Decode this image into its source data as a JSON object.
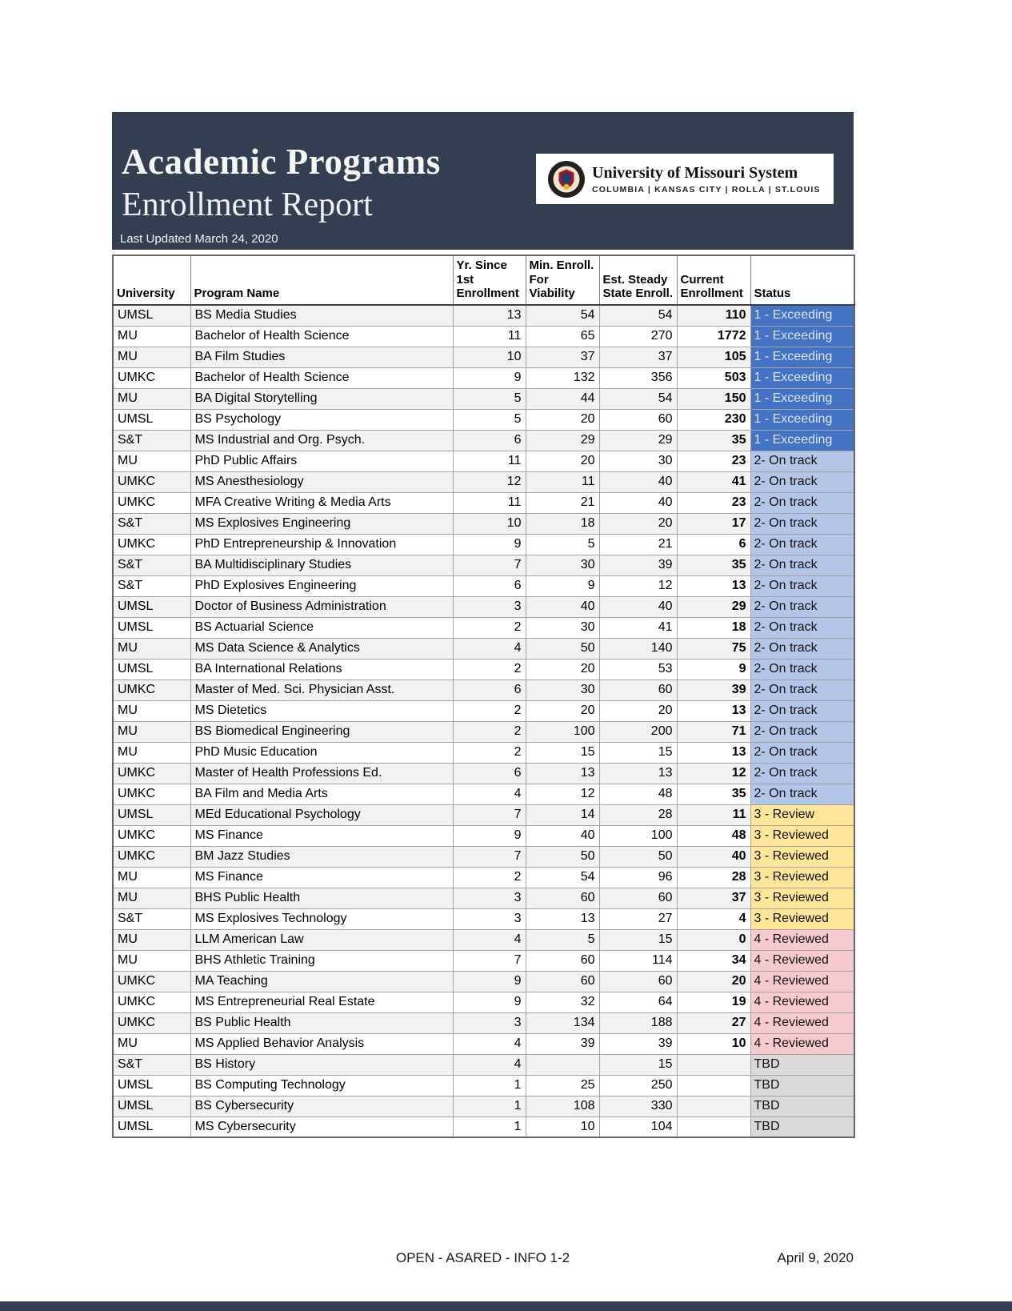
{
  "banner": {
    "title_line1": "Academic Programs",
    "title_line2": "Enrollment Report",
    "last_updated": "Last Updated March 24, 2020",
    "logo": {
      "org_name": "University of Missouri System",
      "campuses": "COLUMBIA | KANSAS CITY | ROLLA | ST.LOUIS",
      "seal_icon": "university-seal-icon"
    },
    "bg_color": "#333f50"
  },
  "table": {
    "headers": [
      {
        "lines": [
          "University"
        ]
      },
      {
        "lines": [
          "Program Name"
        ]
      },
      {
        "lines": [
          "Yr. Since 1st",
          "Enrollment"
        ]
      },
      {
        "lines": [
          "Min. Enroll.",
          "For Viability"
        ]
      },
      {
        "lines": [
          "Est. Steady",
          "State Enroll."
        ]
      },
      {
        "lines": [
          "Current",
          "Enrollment"
        ]
      },
      {
        "lines": [
          "Status"
        ]
      }
    ],
    "rows": [
      {
        "university": "UMSL",
        "program": "BS Media Studies",
        "years": "13",
        "min_enroll": "54",
        "steady_state": "54",
        "current": "110",
        "status": "1 - Exceeding"
      },
      {
        "university": "MU",
        "program": "Bachelor of Health Science",
        "years": "11",
        "min_enroll": "65",
        "steady_state": "270",
        "current": "1772",
        "status": "1 - Exceeding"
      },
      {
        "university": "MU",
        "program": "BA Film Studies",
        "years": "10",
        "min_enroll": "37",
        "steady_state": "37",
        "current": "105",
        "status": "1 - Exceeding"
      },
      {
        "university": "UMKC",
        "program": "Bachelor of Health Science",
        "years": "9",
        "min_enroll": "132",
        "steady_state": "356",
        "current": "503",
        "status": "1 - Exceeding"
      },
      {
        "university": "MU",
        "program": "BA Digital Storytelling",
        "years": "5",
        "min_enroll": "44",
        "steady_state": "54",
        "current": "150",
        "status": "1 - Exceeding"
      },
      {
        "university": "UMSL",
        "program": "BS Psychology",
        "years": "5",
        "min_enroll": "20",
        "steady_state": "60",
        "current": "230",
        "status": "1 - Exceeding"
      },
      {
        "university": "S&T",
        "program": "MS Industrial and Org. Psych.",
        "years": "6",
        "min_enroll": "29",
        "steady_state": "29",
        "current": "35",
        "status": "1 - Exceeding"
      },
      {
        "university": "MU",
        "program": "PhD Public Affairs",
        "years": "11",
        "min_enroll": "20",
        "steady_state": "30",
        "current": "23",
        "status": "2- On track"
      },
      {
        "university": "UMKC",
        "program": "MS Anesthesiology",
        "years": "12",
        "min_enroll": "11",
        "steady_state": "40",
        "current": "41",
        "status": "2- On track"
      },
      {
        "university": "UMKC",
        "program": "MFA Creative Writing & Media Arts",
        "years": "11",
        "min_enroll": "21",
        "steady_state": "40",
        "current": "23",
        "status": "2- On track"
      },
      {
        "university": "S&T",
        "program": "MS Explosives Engineering",
        "years": "10",
        "min_enroll": "18",
        "steady_state": "20",
        "current": "17",
        "status": "2- On track"
      },
      {
        "university": "UMKC",
        "program": "PhD Entrepreneurship & Innovation",
        "years": "9",
        "min_enroll": "5",
        "steady_state": "21",
        "current": "6",
        "status": "2- On track"
      },
      {
        "university": "S&T",
        "program": "BA Multidisciplinary Studies",
        "years": "7",
        "min_enroll": "30",
        "steady_state": "39",
        "current": "35",
        "status": "2- On track"
      },
      {
        "university": "S&T",
        "program": "PhD Explosives Engineering",
        "years": "6",
        "min_enroll": "9",
        "steady_state": "12",
        "current": "13",
        "status": "2- On track"
      },
      {
        "university": "UMSL",
        "program": "Doctor of Business Administration",
        "years": "3",
        "min_enroll": "40",
        "steady_state": "40",
        "current": "29",
        "status": "2- On track"
      },
      {
        "university": "UMSL",
        "program": "BS Actuarial Science",
        "years": "2",
        "min_enroll": "30",
        "steady_state": "41",
        "current": "18",
        "status": "2- On track"
      },
      {
        "university": "MU",
        "program": "MS Data Science & Analytics",
        "years": "4",
        "min_enroll": "50",
        "steady_state": "140",
        "current": "75",
        "status": "2- On track"
      },
      {
        "university": "UMSL",
        "program": "BA International Relations",
        "years": "2",
        "min_enroll": "20",
        "steady_state": "53",
        "current": "9",
        "status": "2- On track"
      },
      {
        "university": "UMKC",
        "program": "Master of Med. Sci. Physician Asst.",
        "years": "6",
        "min_enroll": "30",
        "steady_state": "60",
        "current": "39",
        "status": "2- On track"
      },
      {
        "university": "MU",
        "program": "MS Dietetics",
        "years": "2",
        "min_enroll": "20",
        "steady_state": "20",
        "current": "13",
        "status": "2- On track"
      },
      {
        "university": "MU",
        "program": "BS Biomedical Engineering",
        "years": "2",
        "min_enroll": "100",
        "steady_state": "200",
        "current": "71",
        "status": "2- On track"
      },
      {
        "university": "MU",
        "program": "PhD Music Education",
        "years": "2",
        "min_enroll": "15",
        "steady_state": "15",
        "current": "13",
        "status": "2- On track"
      },
      {
        "university": "UMKC",
        "program": "Master of Health Professions Ed.",
        "years": "6",
        "min_enroll": "13",
        "steady_state": "13",
        "current": "12",
        "status": "2- On track"
      },
      {
        "university": "UMKC",
        "program": "BA Film and Media Arts",
        "years": "4",
        "min_enroll": "12",
        "steady_state": "48",
        "current": "35",
        "status": "2- On track"
      },
      {
        "university": "UMSL",
        "program": "MEd Educational Psychology",
        "years": "7",
        "min_enroll": "14",
        "steady_state": "28",
        "current": "11",
        "status": "3 - Review"
      },
      {
        "university": "UMKC",
        "program": "MS Finance",
        "years": "9",
        "min_enroll": "40",
        "steady_state": "100",
        "current": "48",
        "status": "3 - Reviewed"
      },
      {
        "university": "UMKC",
        "program": "BM Jazz Studies",
        "years": "7",
        "min_enroll": "50",
        "steady_state": "50",
        "current": "40",
        "status": "3 - Reviewed"
      },
      {
        "university": "MU",
        "program": "MS Finance",
        "years": "2",
        "min_enroll": "54",
        "steady_state": "96",
        "current": "28",
        "status": "3 - Reviewed"
      },
      {
        "university": "MU",
        "program": "BHS Public Health",
        "years": "3",
        "min_enroll": "60",
        "steady_state": "60",
        "current": "37",
        "status": "3 - Reviewed"
      },
      {
        "university": "S&T",
        "program": "MS Explosives Technology",
        "years": "3",
        "min_enroll": "13",
        "steady_state": "27",
        "current": "4",
        "status": "3 - Reviewed"
      },
      {
        "university": "MU",
        "program": "LLM American Law",
        "years": "4",
        "min_enroll": "5",
        "steady_state": "15",
        "current": "0",
        "status": "4 - Reviewed"
      },
      {
        "university": "MU",
        "program": "BHS Athletic Training",
        "years": "7",
        "min_enroll": "60",
        "steady_state": "114",
        "current": "34",
        "status": "4 - Reviewed"
      },
      {
        "university": "UMKC",
        "program": "MA Teaching",
        "years": "9",
        "min_enroll": "60",
        "steady_state": "60",
        "current": "20",
        "status": "4 - Reviewed"
      },
      {
        "university": "UMKC",
        "program": "MS Entrepreneurial Real Estate",
        "years": "9",
        "min_enroll": "32",
        "steady_state": "64",
        "current": "19",
        "status": "4 - Reviewed"
      },
      {
        "university": "UMKC",
        "program": "BS Public Health",
        "years": "3",
        "min_enroll": "134",
        "steady_state": "188",
        "current": "27",
        "status": "4 - Reviewed"
      },
      {
        "university": "MU",
        "program": "MS Applied Behavior Analysis",
        "years": "4",
        "min_enroll": "39",
        "steady_state": "39",
        "current": "10",
        "status": "4 - Reviewed"
      },
      {
        "university": "S&T",
        "program": "BS History",
        "years": "4",
        "min_enroll": "",
        "steady_state": "15",
        "current": "",
        "status": "TBD"
      },
      {
        "university": "UMSL",
        "program": "BS Computing Technology",
        "years": "1",
        "min_enroll": "25",
        "steady_state": "250",
        "current": "",
        "status": "TBD"
      },
      {
        "university": "UMSL",
        "program": "BS Cybersecurity",
        "years": "1",
        "min_enroll": "108",
        "steady_state": "330",
        "current": "",
        "status": "TBD"
      },
      {
        "university": "UMSL",
        "program": "MS Cybersecurity",
        "years": "1",
        "min_enroll": "10",
        "steady_state": "104",
        "current": "",
        "status": "TBD"
      }
    ]
  },
  "status_styles": {
    "1": {
      "bg": "#4472c4",
      "fg": "#dbe5f4"
    },
    "2": {
      "bg": "#b4c6e7",
      "fg": "#111111"
    },
    "3": {
      "bg": "#ffe699",
      "fg": "#111111"
    },
    "4": {
      "bg": "#f7cad0",
      "fg": "#111111"
    },
    "T": {
      "bg": "#d9d9d9",
      "fg": "#111111"
    }
  },
  "footer": {
    "center": "OPEN - ASARED - INFO 1-2",
    "right": "April 9, 2020"
  }
}
